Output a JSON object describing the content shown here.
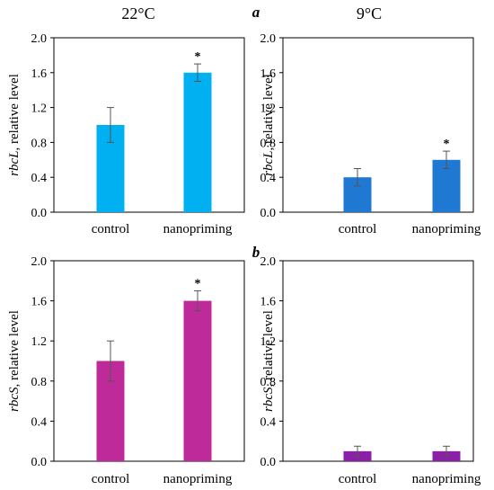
{
  "header": {
    "left_title": "22°C",
    "right_title": "9°C",
    "label_a": "a",
    "label_b": "b"
  },
  "chart_data": [
    {
      "type": "bar",
      "gene": "rbcL",
      "ylabel_rest": ", relative level",
      "categories": [
        "control",
        "nanopriming"
      ],
      "values": [
        1.0,
        1.6
      ],
      "errors": [
        0.2,
        0.1
      ],
      "significance": [
        "",
        "*"
      ],
      "ylim": [
        0,
        2.0
      ],
      "yticks": [
        "0.0",
        "0.4",
        "0.8",
        "1.2",
        "1.6",
        "2.0"
      ],
      "color": "#00b0f0"
    },
    {
      "type": "bar",
      "gene": "rbcL",
      "ylabel_rest": ", relative level",
      "categories": [
        "control",
        "nanopriming"
      ],
      "values": [
        0.4,
        0.6
      ],
      "errors": [
        0.1,
        0.1
      ],
      "significance": [
        "",
        "*"
      ],
      "ylim": [
        0,
        2.0
      ],
      "yticks": [
        "0.0",
        "0.4",
        "0.8",
        "1.2",
        "1.6",
        "2.0"
      ],
      "color": "#1f78d1"
    },
    {
      "type": "bar",
      "gene": "rbcS",
      "ylabel_rest": ", relative level",
      "categories": [
        "control",
        "nanopriming"
      ],
      "values": [
        1.0,
        1.6
      ],
      "errors": [
        0.2,
        0.1
      ],
      "significance": [
        "",
        "*"
      ],
      "ylim": [
        0,
        2.0
      ],
      "yticks": [
        "0.0",
        "0.4",
        "0.8",
        "1.2",
        "1.6",
        "2.0"
      ],
      "color": "#bf2a9b"
    },
    {
      "type": "bar",
      "gene": "rbcS",
      "ylabel_rest": ", relative level",
      "categories": [
        "control",
        "nanopriming"
      ],
      "values": [
        0.1,
        0.1
      ],
      "errors": [
        0.05,
        0.05
      ],
      "significance": [
        "",
        ""
      ],
      "ylim": [
        0,
        2.0
      ],
      "yticks": [
        "0.0",
        "0.4",
        "0.8",
        "1.2",
        "1.6",
        "2.0"
      ],
      "color": "#8b1fa8"
    }
  ]
}
